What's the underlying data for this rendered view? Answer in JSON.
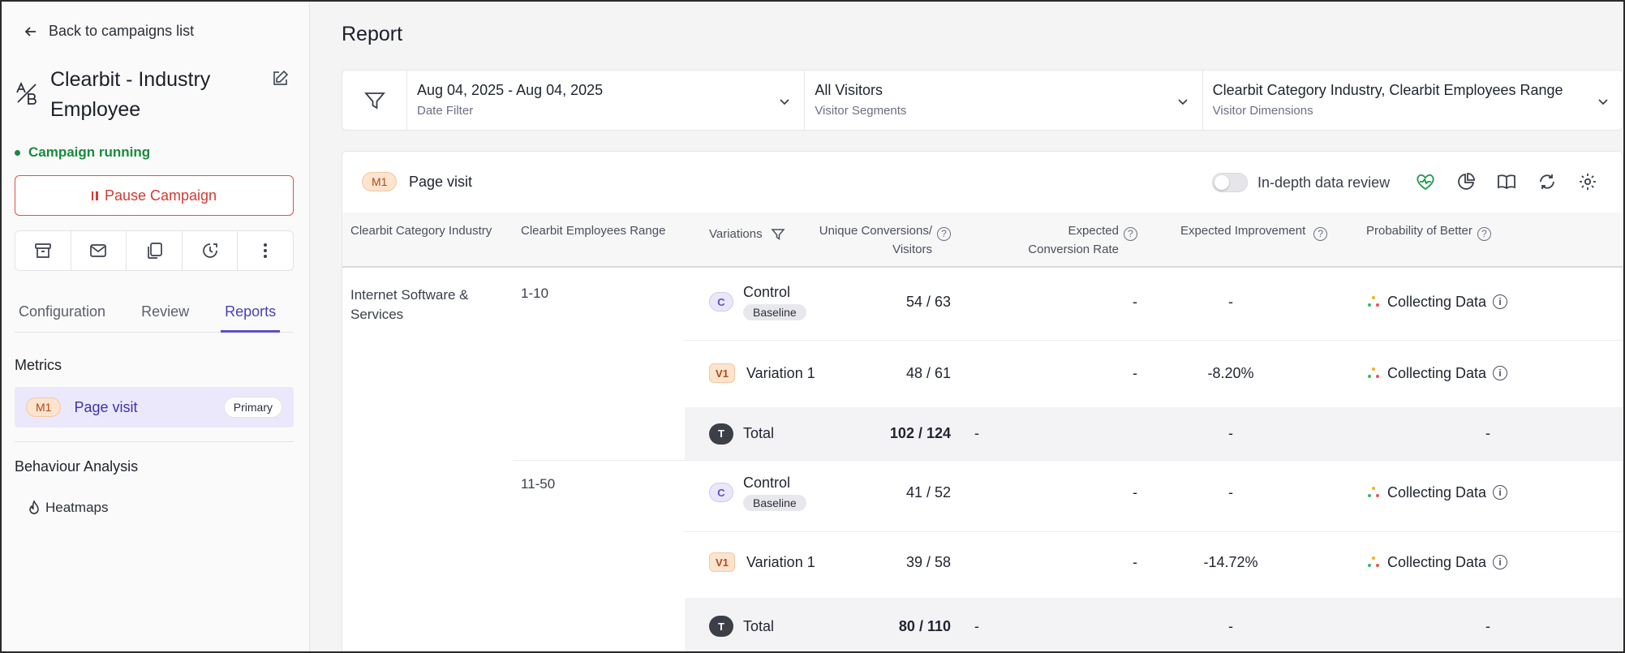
{
  "sidebar": {
    "back_label": "Back to campaigns list",
    "campaign_title": "Clearbit - Industry Employee",
    "status": "Campaign running",
    "pause_label": "Pause Campaign",
    "tabs": [
      "Configuration",
      "Review",
      "Reports"
    ],
    "active_tab": "Reports",
    "metrics_heading": "Metrics",
    "metric": {
      "badge": "M1",
      "name": "Page visit",
      "tag": "Primary"
    },
    "behaviour_heading": "Behaviour Analysis",
    "heatmaps_label": "Heatmaps"
  },
  "main": {
    "title": "Report",
    "filters": [
      {
        "value": "Aug 04, 2025 - Aug 04, 2025",
        "label": "Date Filter"
      },
      {
        "value": "All Visitors",
        "label": "Visitor Segments"
      },
      {
        "value": "Clearbit Category Industry, Clearbit Employees Range",
        "label": "Visitor Dimensions"
      }
    ],
    "card": {
      "metric_badge": "M1",
      "metric_name": "Page visit",
      "toggle_label": "In-depth data review"
    },
    "columns": {
      "industry": "Clearbit Category Industry",
      "employees": "Clearbit Employees Range",
      "variations": "Variations",
      "conversions_1": "Unique Conversions/",
      "conversions_2": "Visitors",
      "expected_1": "Expected",
      "expected_2": "Conversion Rate",
      "improvement": "Expected Improvement",
      "probability": "Probability of Better"
    },
    "industry_value": "Internet Software & Services",
    "groups": [
      {
        "range": "1-10",
        "rows": [
          {
            "badge": "C",
            "name": "Control",
            "sub": "Baseline",
            "conv": "54 / 63",
            "rate": "-",
            "impr": "-",
            "prob": "Collecting Data"
          },
          {
            "badge": "V1",
            "name": "Variation 1",
            "conv": "48 / 61",
            "rate": "-",
            "impr": "-8.20%",
            "prob": "Collecting Data"
          },
          {
            "badge": "T",
            "name": "Total",
            "conv": "102 / 124",
            "rate": "-",
            "impr": "-",
            "prob": "-"
          }
        ]
      },
      {
        "range": "11-50",
        "rows": [
          {
            "badge": "C",
            "name": "Control",
            "sub": "Baseline",
            "conv": "41 / 52",
            "rate": "-",
            "impr": "-",
            "prob": "Collecting Data"
          },
          {
            "badge": "V1",
            "name": "Variation 1",
            "conv": "39 / 58",
            "rate": "-",
            "impr": "-14.72%",
            "prob": "Collecting Data"
          },
          {
            "badge": "T",
            "name": "Total",
            "conv": "80 / 110",
            "rate": "-",
            "impr": "-",
            "prob": "-"
          }
        ]
      }
    ]
  }
}
